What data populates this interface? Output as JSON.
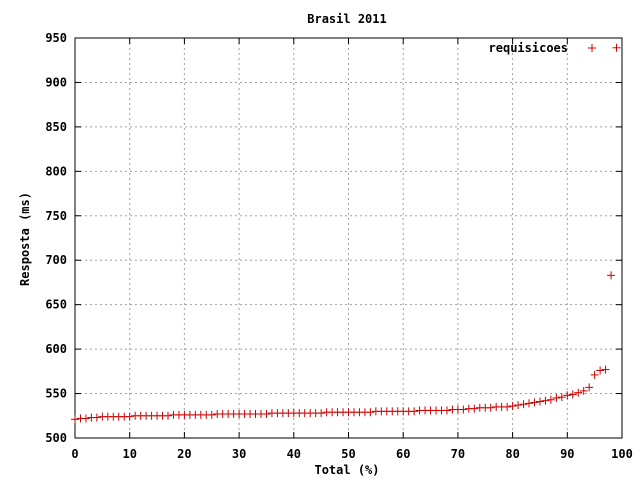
{
  "chart_data": {
    "type": "scatter",
    "title": "Brasil 2011",
    "xlabel": "Total (%)",
    "ylabel": "Resposta (ms)",
    "xlim": [
      0,
      100
    ],
    "ylim": [
      500,
      950
    ],
    "xticks": [
      0,
      10,
      20,
      30,
      40,
      50,
      60,
      70,
      80,
      90,
      100
    ],
    "yticks": [
      500,
      550,
      600,
      650,
      700,
      750,
      800,
      850,
      900,
      950
    ],
    "grid": true,
    "legend_position": "top-right",
    "marker": "+",
    "series": [
      {
        "name": "requisicoes",
        "color": "#cc0000",
        "points": [
          [
            0.0,
            521
          ],
          [
            1.0,
            522
          ],
          [
            2.0,
            522
          ],
          [
            3.0,
            523
          ],
          [
            4.0,
            523
          ],
          [
            5.0,
            524
          ],
          [
            6.0,
            524
          ],
          [
            7.0,
            524
          ],
          [
            8.0,
            524
          ],
          [
            9.0,
            524
          ],
          [
            10.0,
            524
          ],
          [
            11.0,
            525
          ],
          [
            12.0,
            525
          ],
          [
            13.0,
            525
          ],
          [
            14.0,
            525
          ],
          [
            15.0,
            525
          ],
          [
            16.0,
            525
          ],
          [
            17.0,
            525
          ],
          [
            18.0,
            526
          ],
          [
            19.0,
            526
          ],
          [
            20.0,
            526
          ],
          [
            21.0,
            526
          ],
          [
            22.0,
            526
          ],
          [
            23.0,
            526
          ],
          [
            24.0,
            526
          ],
          [
            25.0,
            526
          ],
          [
            26.0,
            527
          ],
          [
            27.0,
            527
          ],
          [
            28.0,
            527
          ],
          [
            29.0,
            527
          ],
          [
            30.0,
            527
          ],
          [
            31.0,
            527
          ],
          [
            32.0,
            527
          ],
          [
            33.0,
            527
          ],
          [
            34.0,
            527
          ],
          [
            35.0,
            527
          ],
          [
            36.0,
            528
          ],
          [
            37.0,
            528
          ],
          [
            38.0,
            528
          ],
          [
            39.0,
            528
          ],
          [
            40.0,
            528
          ],
          [
            41.0,
            528
          ],
          [
            42.0,
            528
          ],
          [
            43.0,
            528
          ],
          [
            44.0,
            528
          ],
          [
            45.0,
            528
          ],
          [
            46.0,
            529
          ],
          [
            47.0,
            529
          ],
          [
            48.0,
            529
          ],
          [
            49.0,
            529
          ],
          [
            50.0,
            529
          ],
          [
            51.0,
            529
          ],
          [
            52.0,
            529
          ],
          [
            53.0,
            529
          ],
          [
            54.0,
            529
          ],
          [
            55.0,
            530
          ],
          [
            56.0,
            530
          ],
          [
            57.0,
            530
          ],
          [
            58.0,
            530
          ],
          [
            59.0,
            530
          ],
          [
            60.0,
            530
          ],
          [
            61.0,
            530
          ],
          [
            62.0,
            530
          ],
          [
            63.0,
            531
          ],
          [
            64.0,
            531
          ],
          [
            65.0,
            531
          ],
          [
            66.0,
            531
          ],
          [
            67.0,
            531
          ],
          [
            68.0,
            531
          ],
          [
            69.0,
            532
          ],
          [
            70.0,
            532
          ],
          [
            71.0,
            532
          ],
          [
            72.0,
            533
          ],
          [
            73.0,
            533
          ],
          [
            74.0,
            534
          ],
          [
            75.0,
            534
          ],
          [
            76.0,
            534
          ],
          [
            77.0,
            535
          ],
          [
            78.0,
            535
          ],
          [
            79.0,
            535
          ],
          [
            80.0,
            536
          ],
          [
            81.0,
            537
          ],
          [
            82.0,
            538
          ],
          [
            83.0,
            539
          ],
          [
            84.0,
            540
          ],
          [
            85.0,
            541
          ],
          [
            86.0,
            542
          ],
          [
            87.0,
            543
          ],
          [
            88.0,
            545
          ],
          [
            89.0,
            546
          ],
          [
            90.0,
            548
          ],
          [
            91.0,
            549
          ],
          [
            92.0,
            551
          ],
          [
            93.0,
            553
          ],
          [
            94.0,
            557
          ],
          [
            95.0,
            571
          ],
          [
            96.0,
            576
          ],
          [
            97.0,
            577
          ],
          [
            98.0,
            683
          ],
          [
            99.0,
            939
          ]
        ]
      }
    ]
  }
}
